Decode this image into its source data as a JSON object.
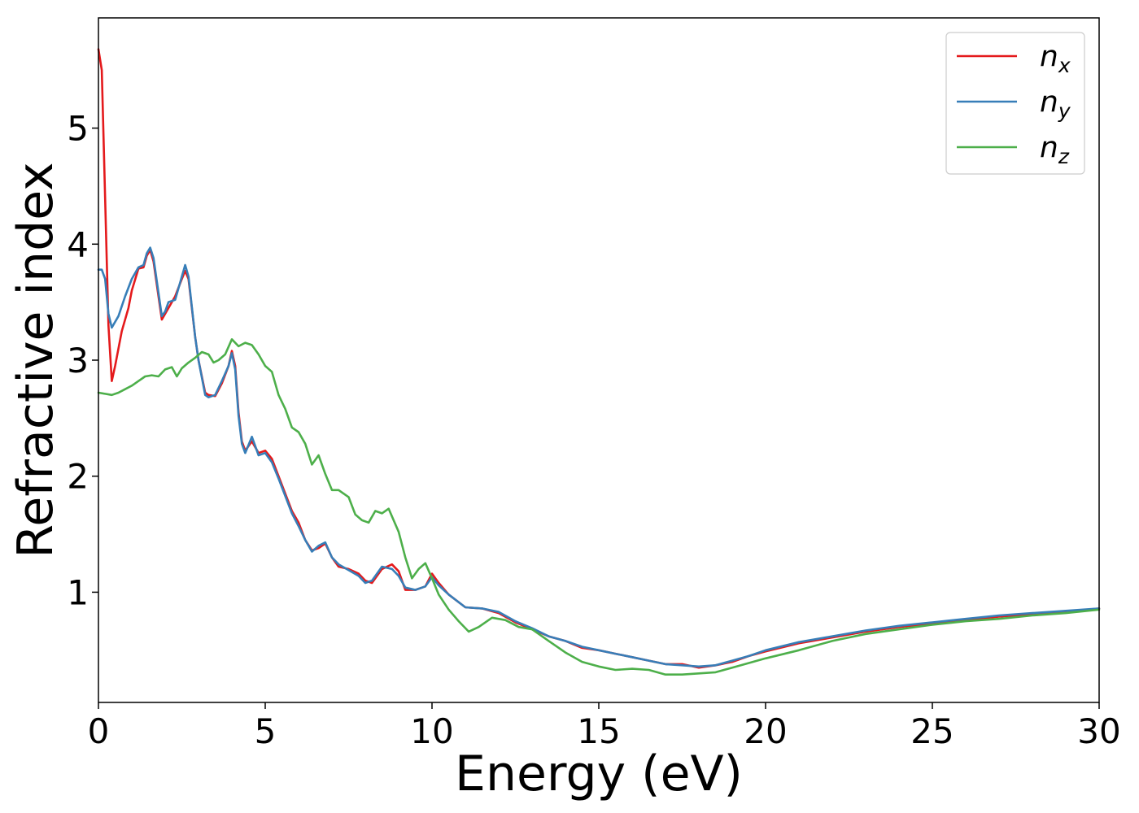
{
  "chart_data": {
    "type": "line",
    "xlabel": "Energy (eV)",
    "ylabel": "Refractive index",
    "xlim": [
      0,
      30
    ],
    "ylim": [
      0.05,
      5.95
    ],
    "x_ticks": [
      0,
      5,
      10,
      15,
      20,
      25,
      30
    ],
    "x_tick_labels": [
      "0",
      "5",
      "10",
      "15",
      "20",
      "25",
      "30"
    ],
    "y_ticks": [
      1,
      2,
      3,
      4,
      5
    ],
    "y_tick_labels": [
      "1",
      "2",
      "3",
      "4",
      "5"
    ],
    "grid": false,
    "legend_position": "top-right",
    "series": [
      {
        "name": "n",
        "subscript": "x",
        "color": "#e41a1c",
        "points": [
          [
            0,
            5.68
          ],
          [
            0.1,
            5.5
          ],
          [
            0.2,
            4.4
          ],
          [
            0.3,
            3.3
          ],
          [
            0.4,
            2.82
          ],
          [
            0.5,
            2.95
          ],
          [
            0.7,
            3.25
          ],
          [
            0.9,
            3.45
          ],
          [
            1.0,
            3.6
          ],
          [
            1.2,
            3.79
          ],
          [
            1.35,
            3.8
          ],
          [
            1.45,
            3.9
          ],
          [
            1.55,
            3.95
          ],
          [
            1.65,
            3.85
          ],
          [
            1.8,
            3.55
          ],
          [
            1.9,
            3.35
          ],
          [
            2.1,
            3.45
          ],
          [
            2.3,
            3.55
          ],
          [
            2.5,
            3.7
          ],
          [
            2.6,
            3.77
          ],
          [
            2.7,
            3.7
          ],
          [
            2.9,
            3.2
          ],
          [
            3.0,
            3.0
          ],
          [
            3.2,
            2.72
          ],
          [
            3.3,
            2.7
          ],
          [
            3.5,
            2.69
          ],
          [
            3.7,
            2.8
          ],
          [
            3.9,
            2.95
          ],
          [
            4.0,
            3.08
          ],
          [
            4.1,
            2.95
          ],
          [
            4.2,
            2.55
          ],
          [
            4.3,
            2.3
          ],
          [
            4.4,
            2.22
          ],
          [
            4.6,
            2.3
          ],
          [
            4.8,
            2.2
          ],
          [
            5.0,
            2.22
          ],
          [
            5.2,
            2.15
          ],
          [
            5.4,
            2.0
          ],
          [
            5.6,
            1.85
          ],
          [
            5.8,
            1.7
          ],
          [
            6.0,
            1.6
          ],
          [
            6.2,
            1.45
          ],
          [
            6.4,
            1.36
          ],
          [
            6.6,
            1.38
          ],
          [
            6.8,
            1.42
          ],
          [
            7.0,
            1.3
          ],
          [
            7.2,
            1.22
          ],
          [
            7.5,
            1.2
          ],
          [
            7.8,
            1.16
          ],
          [
            8.0,
            1.1
          ],
          [
            8.2,
            1.08
          ],
          [
            8.5,
            1.2
          ],
          [
            8.8,
            1.24
          ],
          [
            9.0,
            1.18
          ],
          [
            9.2,
            1.02
          ],
          [
            9.5,
            1.02
          ],
          [
            9.8,
            1.05
          ],
          [
            10.0,
            1.16
          ],
          [
            10.2,
            1.08
          ],
          [
            10.5,
            0.98
          ],
          [
            11.0,
            0.87
          ],
          [
            11.5,
            0.86
          ],
          [
            12.0,
            0.82
          ],
          [
            12.5,
            0.74
          ],
          [
            13.0,
            0.68
          ],
          [
            13.5,
            0.62
          ],
          [
            14.0,
            0.58
          ],
          [
            14.5,
            0.52
          ],
          [
            15.0,
            0.5
          ],
          [
            15.5,
            0.47
          ],
          [
            16.0,
            0.44
          ],
          [
            16.5,
            0.41
          ],
          [
            17.0,
            0.38
          ],
          [
            17.5,
            0.38
          ],
          [
            18.0,
            0.35
          ],
          [
            18.5,
            0.37
          ],
          [
            19.0,
            0.4
          ],
          [
            19.5,
            0.45
          ],
          [
            20.0,
            0.49
          ],
          [
            21.0,
            0.56
          ],
          [
            22.0,
            0.61
          ],
          [
            23.0,
            0.66
          ],
          [
            24.0,
            0.7
          ],
          [
            25.0,
            0.73
          ],
          [
            26.0,
            0.76
          ],
          [
            27.0,
            0.79
          ],
          [
            28.0,
            0.81
          ],
          [
            29.0,
            0.83
          ],
          [
            30.0,
            0.86
          ]
        ]
      },
      {
        "name": "n",
        "subscript": "y",
        "color": "#377eb8",
        "points": [
          [
            0,
            3.78
          ],
          [
            0.1,
            3.78
          ],
          [
            0.2,
            3.7
          ],
          [
            0.3,
            3.4
          ],
          [
            0.4,
            3.28
          ],
          [
            0.6,
            3.38
          ],
          [
            0.8,
            3.55
          ],
          [
            1.0,
            3.7
          ],
          [
            1.2,
            3.8
          ],
          [
            1.35,
            3.82
          ],
          [
            1.45,
            3.92
          ],
          [
            1.55,
            3.97
          ],
          [
            1.65,
            3.88
          ],
          [
            1.8,
            3.58
          ],
          [
            1.9,
            3.38
          ],
          [
            2.0,
            3.42
          ],
          [
            2.1,
            3.5
          ],
          [
            2.3,
            3.52
          ],
          [
            2.5,
            3.72
          ],
          [
            2.6,
            3.82
          ],
          [
            2.7,
            3.72
          ],
          [
            2.9,
            3.2
          ],
          [
            3.0,
            3.0
          ],
          [
            3.2,
            2.7
          ],
          [
            3.3,
            2.68
          ],
          [
            3.5,
            2.7
          ],
          [
            3.7,
            2.82
          ],
          [
            3.9,
            2.95
          ],
          [
            4.0,
            3.06
          ],
          [
            4.1,
            2.92
          ],
          [
            4.2,
            2.52
          ],
          [
            4.3,
            2.28
          ],
          [
            4.4,
            2.2
          ],
          [
            4.6,
            2.34
          ],
          [
            4.8,
            2.18
          ],
          [
            5.0,
            2.2
          ],
          [
            5.2,
            2.12
          ],
          [
            5.4,
            1.98
          ],
          [
            5.6,
            1.83
          ],
          [
            5.8,
            1.68
          ],
          [
            6.0,
            1.57
          ],
          [
            6.2,
            1.45
          ],
          [
            6.4,
            1.35
          ],
          [
            6.6,
            1.4
          ],
          [
            6.8,
            1.43
          ],
          [
            7.0,
            1.3
          ],
          [
            7.2,
            1.24
          ],
          [
            7.5,
            1.19
          ],
          [
            7.8,
            1.14
          ],
          [
            8.0,
            1.08
          ],
          [
            8.2,
            1.1
          ],
          [
            8.5,
            1.22
          ],
          [
            8.8,
            1.2
          ],
          [
            9.0,
            1.14
          ],
          [
            9.2,
            1.04
          ],
          [
            9.5,
            1.02
          ],
          [
            9.8,
            1.05
          ],
          [
            10.0,
            1.13
          ],
          [
            10.2,
            1.06
          ],
          [
            10.5,
            0.98
          ],
          [
            11.0,
            0.87
          ],
          [
            11.5,
            0.86
          ],
          [
            12.0,
            0.83
          ],
          [
            12.5,
            0.75
          ],
          [
            13.0,
            0.69
          ],
          [
            13.5,
            0.62
          ],
          [
            14.0,
            0.58
          ],
          [
            14.5,
            0.53
          ],
          [
            15.0,
            0.5
          ],
          [
            15.5,
            0.47
          ],
          [
            16.0,
            0.44
          ],
          [
            16.5,
            0.41
          ],
          [
            17.0,
            0.38
          ],
          [
            17.5,
            0.37
          ],
          [
            18.0,
            0.36
          ],
          [
            18.5,
            0.37
          ],
          [
            19.0,
            0.41
          ],
          [
            19.5,
            0.45
          ],
          [
            20.0,
            0.5
          ],
          [
            21.0,
            0.57
          ],
          [
            22.0,
            0.62
          ],
          [
            23.0,
            0.67
          ],
          [
            24.0,
            0.71
          ],
          [
            25.0,
            0.74
          ],
          [
            26.0,
            0.77
          ],
          [
            27.0,
            0.8
          ],
          [
            28.0,
            0.82
          ],
          [
            29.0,
            0.84
          ],
          [
            30.0,
            0.86
          ]
        ]
      },
      {
        "name": "n",
        "subscript": "z",
        "color": "#4daf4a",
        "points": [
          [
            0,
            2.72
          ],
          [
            0.2,
            2.71
          ],
          [
            0.4,
            2.7
          ],
          [
            0.6,
            2.72
          ],
          [
            0.8,
            2.75
          ],
          [
            1.0,
            2.78
          ],
          [
            1.2,
            2.82
          ],
          [
            1.4,
            2.86
          ],
          [
            1.6,
            2.87
          ],
          [
            1.8,
            2.86
          ],
          [
            2.0,
            2.92
          ],
          [
            2.2,
            2.94
          ],
          [
            2.35,
            2.86
          ],
          [
            2.5,
            2.93
          ],
          [
            2.7,
            2.98
          ],
          [
            2.9,
            3.02
          ],
          [
            3.1,
            3.07
          ],
          [
            3.3,
            3.05
          ],
          [
            3.45,
            2.98
          ],
          [
            3.6,
            3.0
          ],
          [
            3.8,
            3.05
          ],
          [
            4.0,
            3.18
          ],
          [
            4.2,
            3.12
          ],
          [
            4.4,
            3.15
          ],
          [
            4.6,
            3.13
          ],
          [
            4.8,
            3.05
          ],
          [
            5.0,
            2.95
          ],
          [
            5.2,
            2.9
          ],
          [
            5.4,
            2.7
          ],
          [
            5.6,
            2.58
          ],
          [
            5.8,
            2.42
          ],
          [
            6.0,
            2.38
          ],
          [
            6.2,
            2.28
          ],
          [
            6.4,
            2.1
          ],
          [
            6.6,
            2.18
          ],
          [
            6.8,
            2.02
          ],
          [
            7.0,
            1.88
          ],
          [
            7.2,
            1.88
          ],
          [
            7.5,
            1.82
          ],
          [
            7.7,
            1.67
          ],
          [
            7.9,
            1.62
          ],
          [
            8.1,
            1.6
          ],
          [
            8.3,
            1.7
          ],
          [
            8.5,
            1.68
          ],
          [
            8.7,
            1.72
          ],
          [
            9.0,
            1.52
          ],
          [
            9.2,
            1.3
          ],
          [
            9.4,
            1.12
          ],
          [
            9.6,
            1.2
          ],
          [
            9.8,
            1.25
          ],
          [
            10.0,
            1.12
          ],
          [
            10.2,
            0.98
          ],
          [
            10.5,
            0.85
          ],
          [
            10.8,
            0.75
          ],
          [
            11.1,
            0.66
          ],
          [
            11.4,
            0.7
          ],
          [
            11.8,
            0.78
          ],
          [
            12.2,
            0.76
          ],
          [
            12.6,
            0.7
          ],
          [
            13.0,
            0.68
          ],
          [
            13.5,
            0.58
          ],
          [
            14.0,
            0.48
          ],
          [
            14.5,
            0.4
          ],
          [
            15.0,
            0.36
          ],
          [
            15.5,
            0.33
          ],
          [
            16.0,
            0.34
          ],
          [
            16.5,
            0.33
          ],
          [
            17.0,
            0.29
          ],
          [
            17.5,
            0.29
          ],
          [
            18.0,
            0.3
          ],
          [
            18.5,
            0.31
          ],
          [
            19.0,
            0.35
          ],
          [
            19.5,
            0.39
          ],
          [
            20.0,
            0.43
          ],
          [
            21.0,
            0.5
          ],
          [
            22.0,
            0.58
          ],
          [
            23.0,
            0.64
          ],
          [
            24.0,
            0.68
          ],
          [
            25.0,
            0.72
          ],
          [
            26.0,
            0.75
          ],
          [
            27.0,
            0.77
          ],
          [
            28.0,
            0.8
          ],
          [
            29.0,
            0.82
          ],
          [
            30.0,
            0.85
          ]
        ]
      }
    ]
  }
}
